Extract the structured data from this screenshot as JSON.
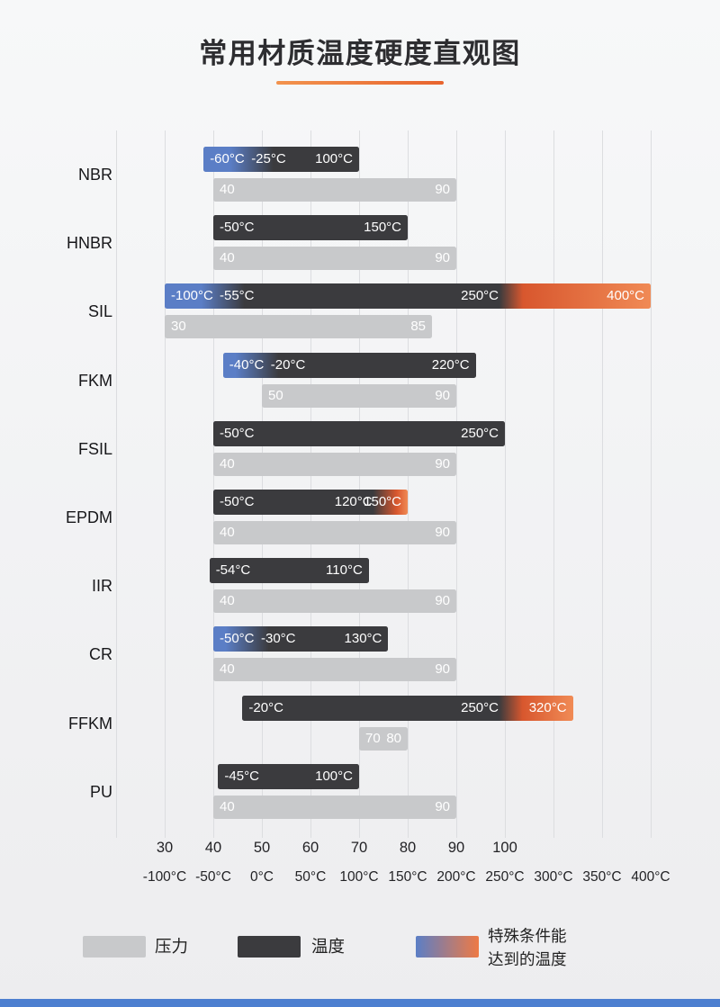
{
  "page": {
    "title": "常用材质温度硬度直观图"
  },
  "legend": {
    "pressure_label": "压力",
    "temperature_label": "温度",
    "special_label_line1": "特殊条件能",
    "special_label_line2": "达到的温度"
  },
  "colors": {
    "pressure_bar": "#c8c9cb",
    "temperature_bar": "#3b3b3e",
    "special_cold": "#5b7ec6",
    "special_hot": "#ee7a45",
    "special_hot_deep": "#d8572e",
    "special_hot_light": "#f08a55",
    "accent": "#e8642e",
    "accent_light": "#f2934e",
    "footer_strip": "#4d7fd0",
    "gridline": "#dcdde0"
  },
  "chart_data": {
    "type": "bar",
    "orientation": "horizontal",
    "title": "常用材质温度硬度直观图",
    "x_axes": {
      "hardness": {
        "ticks": [
          30,
          40,
          50,
          60,
          70,
          80,
          90,
          100
        ]
      },
      "temperature_c": {
        "ticks": [
          -100,
          -50,
          0,
          50,
          100,
          150,
          200,
          250,
          300,
          350,
          400
        ],
        "tick_labels": [
          "-100°C",
          "-50°C",
          "0°C",
          "50°C",
          "100°C",
          "150°C",
          "200°C",
          "250°C",
          "300°C",
          "350°C",
          "400°C"
        ]
      }
    },
    "materials": [
      {
        "name": "NBR",
        "temperature_segments": [
          {
            "kind": "special_cold",
            "from_c": -60,
            "to_c": -25,
            "start_label": "-60°C"
          },
          {
            "kind": "normal",
            "from_c": -25,
            "to_c": 100,
            "start_label": "-25°C",
            "end_label": "100°C"
          }
        ],
        "hardness_range": {
          "from": 40,
          "to": 90,
          "start_label": "40",
          "end_label": "90"
        }
      },
      {
        "name": "HNBR",
        "temperature_segments": [
          {
            "kind": "normal",
            "from_c": -50,
            "to_c": 150,
            "start_label": "-50°C",
            "end_label": "150°C"
          }
        ],
        "hardness_range": {
          "from": 40,
          "to": 90,
          "start_label": "40",
          "end_label": "90"
        }
      },
      {
        "name": "SIL",
        "temperature_segments": [
          {
            "kind": "special_cold",
            "from_c": -100,
            "to_c": -55,
            "start_label": "-100°C"
          },
          {
            "kind": "normal",
            "from_c": -55,
            "to_c": 250,
            "start_label": "-55°C",
            "end_label": "250°C"
          },
          {
            "kind": "special_hot",
            "from_c": 250,
            "to_c": 400,
            "end_label": "400°C"
          }
        ],
        "hardness_range": {
          "from": 30,
          "to": 85,
          "start_label": "30",
          "end_label": "85"
        }
      },
      {
        "name": "FKM",
        "temperature_segments": [
          {
            "kind": "special_cold",
            "from_c": -40,
            "to_c": -20,
            "start_label": "-40°C"
          },
          {
            "kind": "normal",
            "from_c": -20,
            "to_c": 220,
            "start_label": "-20°C",
            "end_label": "220°C"
          }
        ],
        "hardness_range": {
          "from": 50,
          "to": 90,
          "start_label": "50",
          "end_label": "90"
        }
      },
      {
        "name": "FSIL",
        "temperature_segments": [
          {
            "kind": "normal",
            "from_c": -50,
            "to_c": 250,
            "start_label": "-50°C",
            "end_label": "250°C"
          }
        ],
        "hardness_range": {
          "from": 40,
          "to": 90,
          "start_label": "40",
          "end_label": "90"
        }
      },
      {
        "name": "EPDM",
        "temperature_segments": [
          {
            "kind": "normal",
            "from_c": -50,
            "to_c": 120,
            "start_label": "-50°C",
            "end_label": "120°C"
          },
          {
            "kind": "special_hot",
            "from_c": 120,
            "to_c": 150,
            "end_label": "150°C"
          }
        ],
        "hardness_range": {
          "from": 40,
          "to": 90,
          "start_label": "40",
          "end_label": "90"
        }
      },
      {
        "name": "IIR",
        "temperature_segments": [
          {
            "kind": "normal",
            "from_c": -54,
            "to_c": 110,
            "start_label": "-54°C",
            "end_label": "110°C"
          }
        ],
        "hardness_range": {
          "from": 40,
          "to": 90,
          "start_label": "40",
          "end_label": "90"
        }
      },
      {
        "name": "CR",
        "temperature_segments": [
          {
            "kind": "special_cold",
            "from_c": -50,
            "to_c": -30,
            "start_label": "-50°C"
          },
          {
            "kind": "normal",
            "from_c": -30,
            "to_c": 130,
            "start_label": "-30°C",
            "end_label": "130°C"
          }
        ],
        "hardness_range": {
          "from": 40,
          "to": 90,
          "start_label": "40",
          "end_label": "90"
        }
      },
      {
        "name": "FFKM",
        "temperature_segments": [
          {
            "kind": "normal",
            "from_c": -20,
            "to_c": 250,
            "start_label": "-20°C",
            "end_label": "250°C"
          },
          {
            "kind": "special_hot",
            "from_c": 250,
            "to_c": 320,
            "end_label": "320°C"
          }
        ],
        "hardness_range": {
          "from": 70,
          "to": 80,
          "start_label": "70",
          "end_label": "80"
        }
      },
      {
        "name": "PU",
        "temperature_segments": [
          {
            "kind": "normal",
            "from_c": -45,
            "to_c": 100,
            "start_label": "-45°C",
            "end_label": "100°C"
          }
        ],
        "hardness_range": {
          "from": 40,
          "to": 90,
          "start_label": "40",
          "end_label": "90"
        }
      }
    ]
  }
}
